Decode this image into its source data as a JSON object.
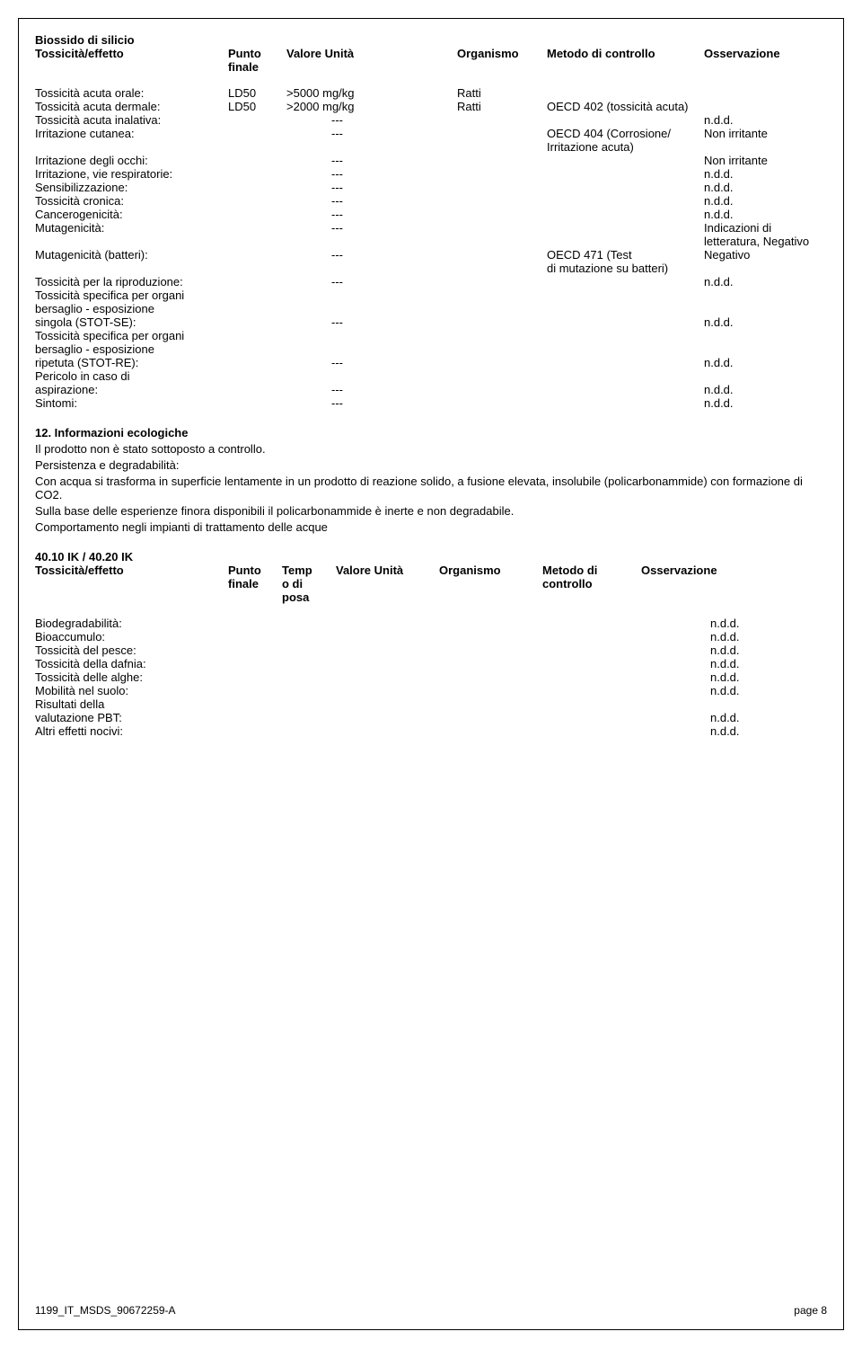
{
  "substance_title": "Biossido di silicio",
  "header": {
    "col1": "Tossicità/effetto",
    "col2a": "Punto",
    "col2b": "finale",
    "col3": "Valore Unità",
    "col4": "Organismo",
    "col5": "Metodo di controllo",
    "col6": "Osservazione"
  },
  "rows": [
    {
      "label": "Tossicità acuta orale:",
      "punto": "LD50",
      "val": ">5000 mg/kg",
      "org": "Ratti",
      "metodo": "",
      "osserv": ""
    },
    {
      "label": "Tossicità acuta dermale:",
      "punto": "LD50",
      "val": ">2000 mg/kg",
      "org": "Ratti",
      "metodo": "OECD 402 (tossicità acuta)",
      "osserv": ""
    },
    {
      "label": "Tossicità acuta inalativa:",
      "punto": "",
      "val_dash": "---",
      "org": "",
      "metodo": "",
      "osserv": "n.d.d."
    },
    {
      "label": "Irritazione cutanea:",
      "punto": "",
      "val_dash": "---",
      "org": "",
      "metodo": "OECD 404 (Corrosione/",
      "osserv": "Non irritante"
    },
    {
      "label": "",
      "punto": "",
      "val": "",
      "org": "",
      "metodo": "Irritazione acuta)",
      "osserv": ""
    },
    {
      "label": "Irritazione degli occhi:",
      "punto": "",
      "val_dash": "---",
      "org": "",
      "metodo": "",
      "osserv": "Non irritante"
    },
    {
      "label": "Irritazione, vie respiratorie:",
      "punto": "",
      "val_dash": "---",
      "org": "",
      "metodo": "",
      "osserv": "n.d.d."
    },
    {
      "label": "Sensibilizzazione:",
      "punto": "",
      "val_dash": "---",
      "org": "",
      "metodo": "",
      "osserv": "n.d.d."
    },
    {
      "label": "Tossicità cronica:",
      "punto": "",
      "val_dash": "---",
      "org": "",
      "metodo": "",
      "osserv": "n.d.d."
    },
    {
      "label": "Cancerogenicità:",
      "punto": "",
      "val_dash": "---",
      "org": "",
      "metodo": "",
      "osserv": "n.d.d."
    },
    {
      "label": "Mutagenicità:",
      "punto": "",
      "val_dash": "---",
      "org": "",
      "metodo": "",
      "osserv": "Indicazioni di"
    },
    {
      "label": "",
      "punto": "",
      "val": "",
      "org": "",
      "metodo": "",
      "osserv": "letteratura, Negativo"
    },
    {
      "label": "Mutagenicità (batteri):",
      "punto": "",
      "val_dash": "---",
      "org": "",
      "metodo": "OECD 471 (Test",
      "osserv": "Negativo"
    },
    {
      "label": "",
      "punto": "",
      "val": "",
      "org": "",
      "metodo": "di mutazione su batteri)",
      "osserv": ""
    },
    {
      "label": "Tossicità per la riproduzione:",
      "punto": "",
      "val_dash": "---",
      "org": "",
      "metodo": "",
      "osserv": "n.d.d."
    },
    {
      "label": "Tossicità specifica per organi",
      "punto": "",
      "val": "",
      "org": "",
      "metodo": "",
      "osserv": ""
    },
    {
      "label": "bersaglio - esposizione",
      "punto": "",
      "val": "",
      "org": "",
      "metodo": "",
      "osserv": ""
    },
    {
      "label": "singola (STOT-SE):",
      "punto": "",
      "val_dash": "---",
      "org": "",
      "metodo": "",
      "osserv": "n.d.d."
    },
    {
      "label": "Tossicità specifica per organi",
      "punto": "",
      "val": "",
      "org": "",
      "metodo": "",
      "osserv": ""
    },
    {
      "label": "bersaglio - esposizione",
      "punto": "",
      "val": "",
      "org": "",
      "metodo": "",
      "osserv": ""
    },
    {
      "label": "ripetuta (STOT-RE):",
      "punto": "",
      "val_dash": "---",
      "org": "",
      "metodo": "",
      "osserv": "n.d.d."
    },
    {
      "label": "Pericolo in caso di",
      "punto": "",
      "val": "",
      "org": "",
      "metodo": "",
      "osserv": ""
    },
    {
      "label": "aspirazione:",
      "punto": "",
      "val_dash": "---",
      "org": "",
      "metodo": "",
      "osserv": "n.d.d."
    },
    {
      "label": "Sintomi:",
      "punto": "",
      "val_dash": "---",
      "org": "",
      "metodo": "",
      "osserv": "n.d.d."
    }
  ],
  "section12": {
    "title": "12. Informazioni ecologiche",
    "lines": [
      "Il prodotto non è stato sottoposto a controllo.",
      "Persistenza e degradabilità:",
      "Con acqua si trasforma in superficie lentamente in un prodotto di reazione solido, a fusione elevata, insolubile (policarbonammide) con formazione di CO2.",
      "Sulla base delle esperienze finora disponibili il policarbonammide è inerte e non degradabile.",
      "Comportamento negli impianti di trattamento delle acque"
    ]
  },
  "eco_title": "40.10 IK / 40.20 IK",
  "eco_header": {
    "c1": "Tossicità/effetto",
    "c2a": "Punto",
    "c2b": "finale",
    "c3a": "Temp",
    "c3b": "o di",
    "c3c": "posa",
    "c4": "Valore Unità",
    "c5": "Organismo",
    "c6a": "Metodo di",
    "c6b": "controllo",
    "c7": "Osservazione"
  },
  "eco_rows": [
    {
      "label": "Biodegradabilità:",
      "osserv": "n.d.d."
    },
    {
      "label": "Bioaccumulo:",
      "osserv": "n.d.d."
    },
    {
      "label": "Tossicità del pesce:",
      "osserv": "n.d.d."
    },
    {
      "label": "Tossicità della dafnia:",
      "osserv": "n.d.d."
    },
    {
      "label": "Tossicità delle alghe:",
      "osserv": "n.d.d."
    },
    {
      "label": "Mobilità nel suolo:",
      "osserv": "n.d.d."
    },
    {
      "label": "Risultati della",
      "osserv": ""
    },
    {
      "label": "valutazione PBT:",
      "osserv": "n.d.d."
    },
    {
      "label": "Altri effetti nocivi:",
      "osserv": "n.d.d."
    }
  ],
  "footer": {
    "left": "1199_IT_MSDS_90672259-A",
    "right": "page 8"
  }
}
